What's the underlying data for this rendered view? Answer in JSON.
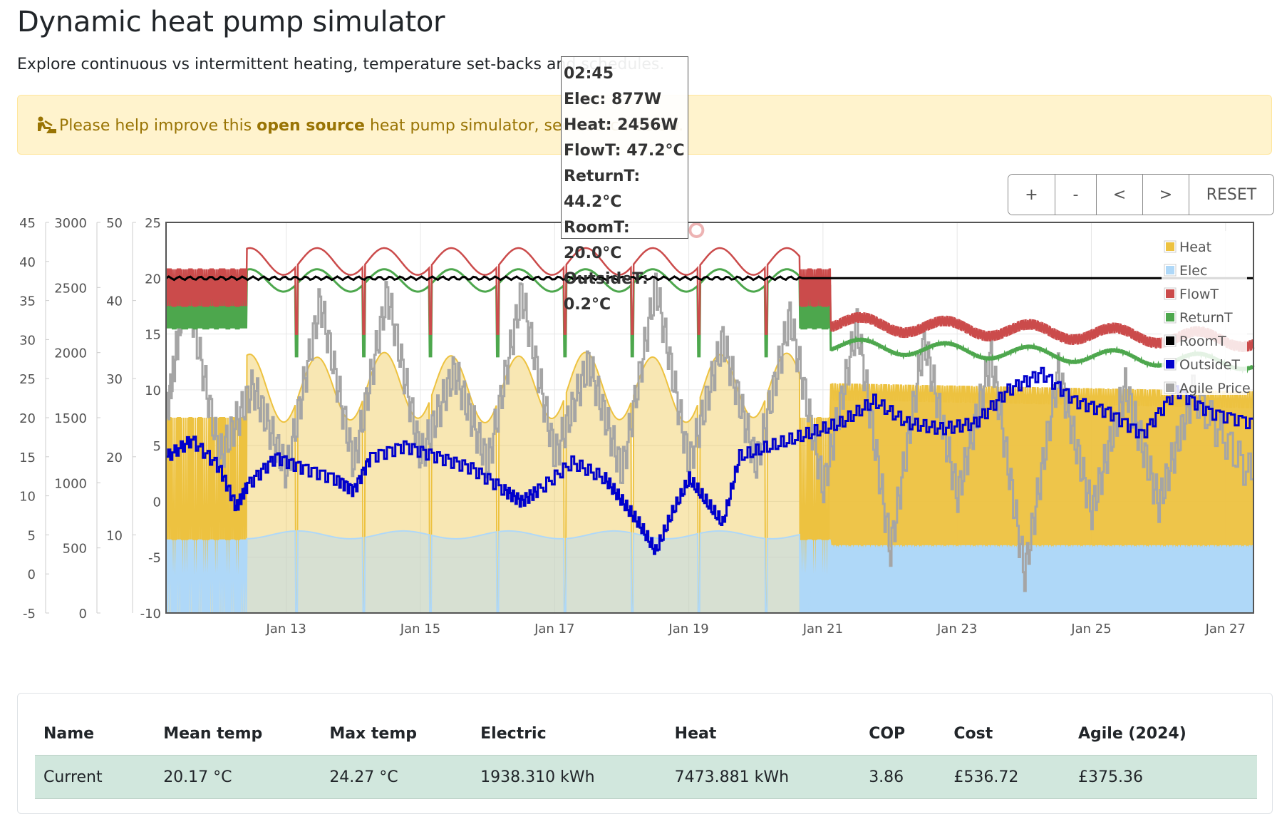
{
  "header": {
    "title": "Dynamic heat pump simulator",
    "subtitle": "Explore continuous vs intermittent heating, temperature set-backs and schedules."
  },
  "alert": {
    "icon": "person-digging-icon",
    "text_before": "Please help improve this ",
    "link_text": "open source",
    "text_after": " heat pump simulator, see source below."
  },
  "controls": {
    "zoom_in_label": "+",
    "zoom_out_label": "-",
    "pan_left_label": "<",
    "pan_right_label": ">",
    "reset_label": "RESET"
  },
  "tooltip": {
    "time": "02:45",
    "elec": "Elec: 877W",
    "heat": "Heat: 2456W",
    "flowT": "FlowT: 47.2°C",
    "returnT": "ReturnT: 44.2°C",
    "roomT": "RoomT: 20.0°C",
    "outsideT": "OutsideT: 0.2°C"
  },
  "chart_data": {
    "type": "line",
    "x_axis": {
      "type": "time",
      "range": [
        "2024-01-11T05:00",
        "2024-01-27T10:00"
      ],
      "tick_labels": [
        "Jan 13",
        "Jan 15",
        "Jan 17",
        "Jan 19",
        "Jan 21",
        "Jan 23",
        "Jan 25",
        "Jan 27"
      ],
      "tick_dates": [
        "2024-01-13",
        "2024-01-15",
        "2024-01-17",
        "2024-01-19",
        "2024-01-21",
        "2024-01-23",
        "2024-01-25",
        "2024-01-27"
      ]
    },
    "y_axes": [
      {
        "id": "price",
        "range": [
          -5,
          45
        ],
        "ticks": [
          -5,
          0,
          5,
          10,
          15,
          20,
          25,
          30,
          35,
          40,
          45
        ]
      },
      {
        "id": "power",
        "range": [
          0,
          3000
        ],
        "ticks": [
          0,
          500,
          1000,
          1500,
          2000,
          2500,
          3000
        ]
      },
      {
        "id": "flow",
        "range": [
          0,
          50
        ],
        "ticks": [
          10,
          20,
          30,
          40,
          50
        ]
      },
      {
        "id": "temp",
        "range": [
          -10,
          25
        ],
        "ticks": [
          -10,
          -5,
          0,
          5,
          10,
          15,
          20,
          25
        ]
      }
    ],
    "grid": true,
    "legend_position": "top-right",
    "legend": [
      "Heat",
      "Elec",
      "FlowT",
      "ReturnT",
      "RoomT",
      "OutsideT",
      "Agile Price"
    ],
    "colors": {
      "Heat": "#edc240",
      "Elec": "#afd8f8",
      "FlowT": "#cb4b4b",
      "ReturnT": "#4da74d",
      "RoomT": "#000000",
      "OutsideT": "#0000cc",
      "Agile Price": "#a5a5a5"
    },
    "hover_marker": {
      "x": "2024-01-19T02:45",
      "y": 24.3
    },
    "series": [
      {
        "name": "OutsideT",
        "axis": "temp",
        "points": [
          [
            "2024-01-11T05:00",
            4
          ],
          [
            "2024-01-11T14:00",
            5.5
          ],
          [
            "2024-01-12T00:00",
            3
          ],
          [
            "2024-01-12T06:00",
            -0.5
          ],
          [
            "2024-01-12T10:00",
            1.5
          ],
          [
            "2024-01-12T20:00",
            4
          ],
          [
            "2024-01-13T06:00",
            3
          ],
          [
            "2024-01-13T18:00",
            2
          ],
          [
            "2024-01-14T00:00",
            1
          ],
          [
            "2024-01-14T06:00",
            4
          ],
          [
            "2024-01-14T18:00",
            5
          ],
          [
            "2024-01-15T06:00",
            4
          ],
          [
            "2024-01-15T18:00",
            3
          ],
          [
            "2024-01-16T06:00",
            1
          ],
          [
            "2024-01-16T12:00",
            0
          ],
          [
            "2024-01-16T18:00",
            1
          ],
          [
            "2024-01-17T06:00",
            3.5
          ],
          [
            "2024-01-17T18:00",
            2
          ],
          [
            "2024-01-18T00:00",
            0
          ],
          [
            "2024-01-18T06:00",
            -2
          ],
          [
            "2024-01-18T12:00",
            -4.5
          ],
          [
            "2024-01-18T18:00",
            -1
          ],
          [
            "2024-01-19T00:00",
            2
          ],
          [
            "2024-01-19T06:00",
            0
          ],
          [
            "2024-01-19T12:00",
            -2
          ],
          [
            "2024-01-19T18:00",
            4
          ],
          [
            "2024-01-20T06:00",
            5
          ],
          [
            "2024-01-20T18:00",
            6
          ],
          [
            "2024-01-21T06:00",
            7
          ],
          [
            "2024-01-21T18:00",
            9
          ],
          [
            "2024-01-22T06:00",
            7
          ],
          [
            "2024-01-22T18:00",
            6.5
          ],
          [
            "2024-01-23T06:00",
            7
          ],
          [
            "2024-01-23T18:00",
            10
          ],
          [
            "2024-01-24T06:00",
            11.5
          ],
          [
            "2024-01-24T18:00",
            9
          ],
          [
            "2024-01-25T06:00",
            8
          ],
          [
            "2024-01-25T18:00",
            6
          ],
          [
            "2024-01-26T06:00",
            10
          ],
          [
            "2024-01-26T18:00",
            8
          ],
          [
            "2024-01-27T10:00",
            7
          ]
        ]
      },
      {
        "name": "Agile Price",
        "axis": "price",
        "points": [
          [
            "2024-01-11T05:00",
            20
          ],
          [
            "2024-01-11T12:00",
            37
          ],
          [
            "2024-01-12T00:00",
            15
          ],
          [
            "2024-01-12T12:00",
            24
          ],
          [
            "2024-01-13T00:00",
            13
          ],
          [
            "2024-01-13T12:00",
            35
          ],
          [
            "2024-01-14T00:00",
            14
          ],
          [
            "2024-01-14T12:00",
            36
          ],
          [
            "2024-01-15T00:00",
            15
          ],
          [
            "2024-01-15T12:00",
            26
          ],
          [
            "2024-01-16T00:00",
            14
          ],
          [
            "2024-01-16T12:00",
            36
          ],
          [
            "2024-01-17T00:00",
            15
          ],
          [
            "2024-01-17T12:00",
            27
          ],
          [
            "2024-01-18T00:00",
            13
          ],
          [
            "2024-01-18T12:00",
            37
          ],
          [
            "2024-01-19T00:00",
            14
          ],
          [
            "2024-01-19T12:00",
            30
          ],
          [
            "2024-01-20T00:00",
            14
          ],
          [
            "2024-01-20T12:00",
            33
          ],
          [
            "2024-01-21T00:00",
            11
          ],
          [
            "2024-01-21T12:00",
            32
          ],
          [
            "2024-01-22T00:00",
            3
          ],
          [
            "2024-01-22T12:00",
            30
          ],
          [
            "2024-01-23T00:00",
            10
          ],
          [
            "2024-01-23T12:00",
            28
          ],
          [
            "2024-01-24T00:00",
            0
          ],
          [
            "2024-01-24T12:00",
            26
          ],
          [
            "2024-01-25T00:00",
            8
          ],
          [
            "2024-01-25T12:00",
            24
          ],
          [
            "2024-01-26T00:00",
            9
          ],
          [
            "2024-01-26T12:00",
            23
          ],
          [
            "2024-01-27T10:00",
            12
          ]
        ]
      }
    ]
  },
  "results": {
    "columns": [
      "Name",
      "Mean temp",
      "Max temp",
      "Electric",
      "Heat",
      "COP",
      "Cost",
      "Agile (2024)"
    ],
    "rows": [
      [
        "Current",
        "20.17 °C",
        "24.27 °C",
        "1938.310 kWh",
        "7473.881 kWh",
        "3.86",
        "£536.72",
        "£375.36"
      ]
    ]
  }
}
